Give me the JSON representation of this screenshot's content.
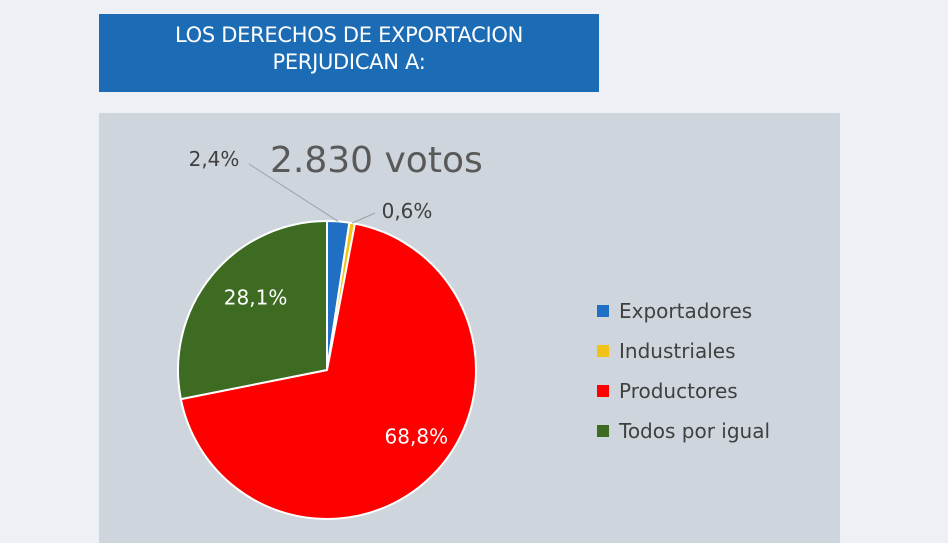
{
  "header": {
    "title_line1": "LOS DERECHOS DE EXPORTACION",
    "title_line2": "PERJUDICAN A:"
  },
  "chart_data": {
    "type": "pie",
    "annotation": "2.830 votos",
    "categories": [
      "Exportadores",
      "Industriales",
      "Productores",
      "Todos por igual"
    ],
    "values": [
      2.4,
      0.6,
      68.8,
      28.1
    ],
    "data_labels": [
      "2,4%",
      "0,6%",
      "68,8%",
      "28,1%"
    ],
    "colors": [
      "#1f6fc5",
      "#f2c314",
      "#ff0000",
      "#3d6b22"
    ],
    "legend_placement": "right",
    "start_angle": "12 o'clock",
    "direction": "clockwise"
  }
}
